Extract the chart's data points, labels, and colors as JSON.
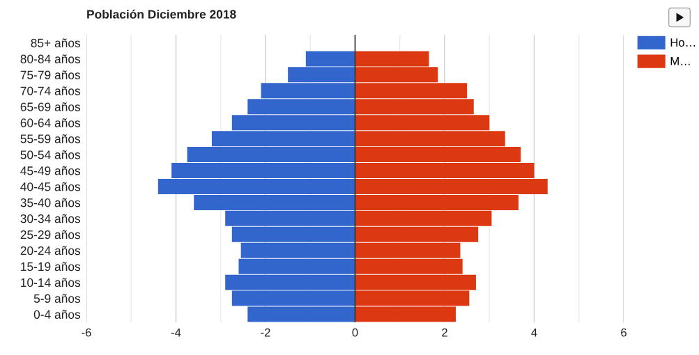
{
  "chart_data": {
    "type": "bar",
    "orientation": "horizontal",
    "stacked": true,
    "title": "Población Diciembre 2018",
    "categories": [
      "85+ años",
      "80-84 años",
      "75-79 años",
      "70-74 años",
      "65-69 años",
      "60-64 años",
      "55-59 años",
      "50-54 años",
      "45-49 años",
      "40-45 años",
      "35-40 años",
      "30-34 años",
      "25-29 años",
      "20-24 años",
      "15-19 años",
      "10-14 años",
      "5-9 años",
      "0-4 años"
    ],
    "series": [
      {
        "name": "Ho…",
        "color": "#3366cc",
        "values": [
          0,
          -1.1,
          -1.5,
          -2.1,
          -2.4,
          -2.75,
          -3.2,
          -3.75,
          -4.1,
          -4.4,
          -3.6,
          -2.9,
          -2.75,
          -2.55,
          -2.6,
          -2.9,
          -2.75,
          -2.4
        ]
      },
      {
        "name": "M…",
        "color": "#dc3912",
        "values": [
          0,
          1.65,
          1.85,
          2.5,
          2.65,
          3.0,
          3.35,
          3.7,
          4.0,
          4.3,
          3.65,
          3.05,
          2.75,
          2.35,
          2.4,
          2.7,
          2.55,
          2.25
        ]
      }
    ],
    "xlim": [
      -6,
      6
    ],
    "xticks": [
      -6,
      {
        "value": -5,
        "label": null
      },
      -4,
      {
        "value": -3,
        "label": null
      },
      -2,
      {
        "value": -1,
        "label": null
      },
      0,
      {
        "value": 1,
        "label": null
      },
      2,
      {
        "value": 3,
        "label": null
      },
      4,
      {
        "value": 5,
        "label": null
      },
      6
    ],
    "grid": "x",
    "legend": "top right",
    "ref_lines": [
      {
        "axis": "x",
        "value": 0,
        "color": "#333333"
      }
    ]
  }
}
